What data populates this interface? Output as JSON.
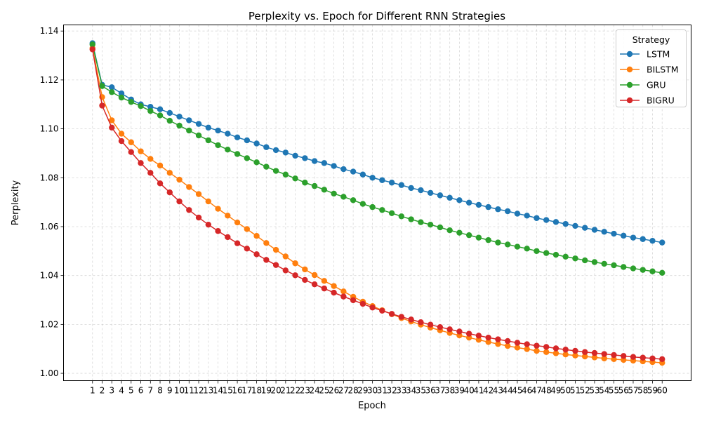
{
  "chart_data": {
    "type": "line",
    "title": "Perplexity vs. Epoch for Different RNN Strategies",
    "xlabel": "Epoch",
    "ylabel": "Perplexity",
    "legend_title": "Strategy",
    "legend_position": "top-right",
    "grid": true,
    "x": [
      1,
      2,
      3,
      4,
      5,
      6,
      7,
      8,
      9,
      10,
      11,
      12,
      13,
      14,
      15,
      16,
      17,
      18,
      19,
      20,
      21,
      22,
      23,
      24,
      25,
      26,
      27,
      28,
      29,
      30,
      31,
      32,
      33,
      34,
      35,
      36,
      37,
      38,
      39,
      40,
      41,
      42,
      43,
      44,
      45,
      46,
      47,
      48,
      49,
      50,
      51,
      52,
      53,
      54,
      55,
      56,
      57,
      58,
      59,
      60
    ],
    "xlim": [
      -2,
      63
    ],
    "ylim": [
      0.997,
      1.1425
    ],
    "yticks": [
      1.0,
      1.02,
      1.04,
      1.06,
      1.08,
      1.1,
      1.12,
      1.14
    ],
    "ytick_labels": [
      "1.00",
      "1.02",
      "1.04",
      "1.06",
      "1.08",
      "1.10",
      "1.12",
      "1.14"
    ],
    "series": [
      {
        "name": "LSTM",
        "color": "#1f77b4",
        "values": [
          1.135,
          1.118,
          1.117,
          1.1145,
          1.112,
          1.11,
          1.109,
          1.108,
          1.1065,
          1.105,
          1.1035,
          1.102,
          1.1005,
          1.0993,
          1.098,
          1.0965,
          1.0953,
          1.094,
          1.0925,
          1.0913,
          1.0903,
          1.089,
          1.088,
          1.0868,
          1.086,
          1.0848,
          1.0835,
          1.0825,
          1.0813,
          1.08,
          1.079,
          1.078,
          1.077,
          1.0758,
          1.0749,
          1.0738,
          1.0728,
          1.0718,
          1.0708,
          1.0698,
          1.0689,
          1.068,
          1.0671,
          1.0663,
          1.0653,
          1.0645,
          1.0635,
          1.0627,
          1.0619,
          1.0611,
          1.0603,
          1.0595,
          1.0587,
          1.0579,
          1.0571,
          1.0563,
          1.0555,
          1.0549,
          1.0542,
          1.0535
        ]
      },
      {
        "name": "BILSTM",
        "color": "#ff7f0e",
        "values": [
          1.133,
          1.113,
          1.1035,
          1.098,
          1.0945,
          1.0908,
          1.0877,
          1.085,
          1.082,
          1.0792,
          1.0762,
          1.0733,
          1.0703,
          1.0673,
          1.0645,
          1.0617,
          1.059,
          1.0562,
          1.0533,
          1.0505,
          1.0478,
          1.045,
          1.0425,
          1.0402,
          1.0378,
          1.0357,
          1.0335,
          1.0313,
          1.0293,
          1.0275,
          1.0258,
          1.0242,
          1.0226,
          1.0212,
          1.0199,
          1.0187,
          1.0176,
          1.0165,
          1.0155,
          1.0146,
          1.0137,
          1.0128,
          1.012,
          1.0112,
          1.0105,
          1.0099,
          1.0092,
          1.0087,
          1.0082,
          1.0077,
          1.0073,
          1.0069,
          1.0065,
          1.0061,
          1.0058,
          1.0055,
          1.0052,
          1.0049,
          1.0046,
          1.0043
        ]
      },
      {
        "name": "GRU",
        "color": "#2ca02c",
        "values": [
          1.1345,
          1.1175,
          1.115,
          1.1128,
          1.111,
          1.1093,
          1.1073,
          1.1055,
          1.1033,
          1.1013,
          1.0993,
          1.0973,
          1.0953,
          1.0933,
          1.0915,
          1.0897,
          1.088,
          1.0863,
          1.0845,
          1.0828,
          1.0813,
          1.0797,
          1.078,
          1.0766,
          1.0751,
          1.0735,
          1.0722,
          1.0708,
          1.0693,
          1.068,
          1.0668,
          1.0655,
          1.0642,
          1.063,
          1.0618,
          1.0608,
          1.0597,
          1.0585,
          1.0575,
          1.0565,
          1.0555,
          1.0545,
          1.0535,
          1.0527,
          1.0518,
          1.051,
          1.05,
          1.0492,
          1.0485,
          1.0477,
          1.047,
          1.0462,
          1.0455,
          1.0448,
          1.0442,
          1.0435,
          1.0429,
          1.0423,
          1.0417,
          1.0411
        ]
      },
      {
        "name": "BIGRU",
        "color": "#d62728",
        "values": [
          1.1325,
          1.1095,
          1.1005,
          1.095,
          1.0905,
          1.086,
          1.082,
          1.0777,
          1.074,
          1.0703,
          1.0668,
          1.0637,
          1.0608,
          1.0582,
          1.0557,
          1.0532,
          1.051,
          1.0487,
          1.0464,
          1.0443,
          1.0421,
          1.0401,
          1.0382,
          1.0364,
          1.0347,
          1.033,
          1.0314,
          1.0299,
          1.0284,
          1.0269,
          1.0256,
          1.0243,
          1.0231,
          1.022,
          1.0209,
          1.0199,
          1.0189,
          1.018,
          1.0171,
          1.0162,
          1.0154,
          1.0146,
          1.0139,
          1.0132,
          1.0125,
          1.0119,
          1.0113,
          1.0108,
          1.0102,
          1.0097,
          1.0092,
          1.0087,
          1.0083,
          1.0079,
          1.0075,
          1.0071,
          1.0067,
          1.0064,
          1.0061,
          1.0058
        ]
      }
    ]
  }
}
